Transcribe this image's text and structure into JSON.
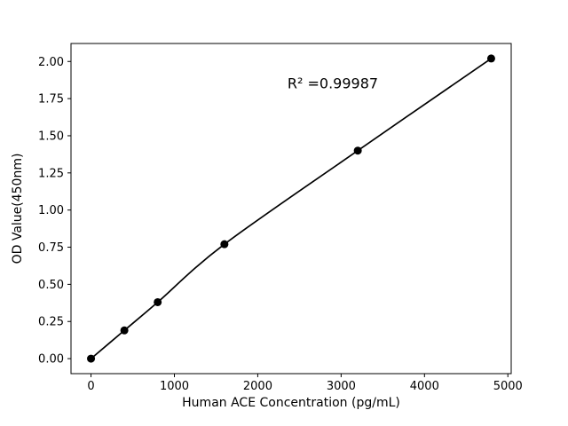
{
  "chart_data": {
    "type": "scatter",
    "x": [
      0,
      400,
      800,
      1600,
      3200,
      4800
    ],
    "y": [
      0.0,
      0.19,
      0.38,
      0.77,
      1.4,
      2.02
    ],
    "title": "",
    "xlabel": "Human ACE Concentration (pg/mL)",
    "ylabel": "OD Value(450nm)",
    "xlim": [
      -240,
      5040
    ],
    "ylim": [
      -0.101,
      2.121
    ],
    "xticks": [
      0,
      1000,
      2000,
      3000,
      4000,
      5000
    ],
    "yticks": [
      0.0,
      0.25,
      0.5,
      0.75,
      1.0,
      1.25,
      1.5,
      1.75,
      2.0
    ],
    "annotation": {
      "text": "R² =0.99987",
      "x": 2900,
      "y": 1.82
    },
    "style": {
      "line_color": "#000000",
      "marker_color": "#000000",
      "marker": "circle",
      "line": "smooth-fit",
      "grid": false,
      "legend": null,
      "background": "#ffffff"
    }
  }
}
